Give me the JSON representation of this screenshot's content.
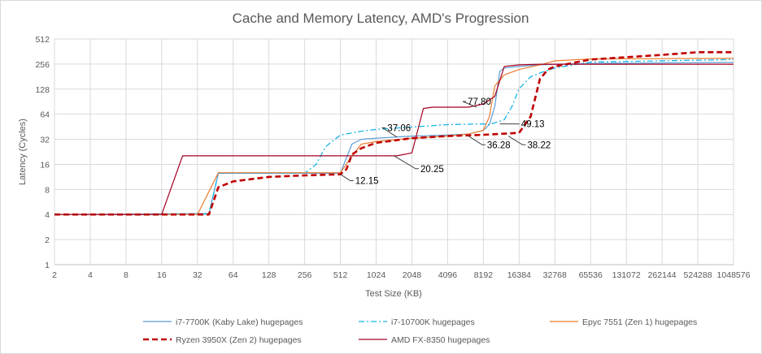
{
  "chart_data": {
    "type": "line",
    "title": "Cache and Memory Latency, AMD's Progression",
    "xlabel": "Test Size (KB)",
    "ylabel": "Latency (Cycles)",
    "x_scale": "log2",
    "y_scale": "log2",
    "x_ticks": [
      "2",
      "4",
      "8",
      "16",
      "32",
      "64",
      "128",
      "256",
      "512",
      "1024",
      "2048",
      "4096",
      "8192",
      "16384",
      "32768",
      "65536",
      "131072",
      "262144",
      "524288",
      "1048576"
    ],
    "y_ticks": [
      "1",
      "2",
      "4",
      "8",
      "16",
      "32",
      "64",
      "128",
      "256",
      "512"
    ],
    "xlim": [
      2,
      1048576
    ],
    "ylim": [
      1,
      512
    ],
    "grid": true,
    "legend_position": "bottom",
    "series": [
      {
        "name": "i7-7700K (Kaby Lake) hugepages",
        "color": "#5b9bd5",
        "dash": "solid",
        "width": 1.2,
        "points": [
          [
            2,
            4
          ],
          [
            32,
            4.1
          ],
          [
            40,
            4.1
          ],
          [
            48,
            12.5
          ],
          [
            64,
            12.5
          ],
          [
            256,
            12.5
          ],
          [
            512,
            12.5
          ],
          [
            640,
            28
          ],
          [
            768,
            32
          ],
          [
            1024,
            33
          ],
          [
            2048,
            35
          ],
          [
            4096,
            36
          ],
          [
            6144,
            37
          ],
          [
            8192,
            41
          ],
          [
            9216,
            48
          ],
          [
            10240,
            80
          ],
          [
            11264,
            210
          ],
          [
            12288,
            230
          ],
          [
            16384,
            240
          ],
          [
            24576,
            250
          ],
          [
            32768,
            255
          ],
          [
            65536,
            260
          ],
          [
            1048576,
            268
          ]
        ]
      },
      {
        "name": "i7-10700K hugepages",
        "color": "#16b4e6",
        "dash": "dashdot",
        "width": 1.3,
        "points": [
          [
            2,
            4
          ],
          [
            32,
            4
          ],
          [
            40,
            4.1
          ],
          [
            48,
            12.5
          ],
          [
            64,
            12.5
          ],
          [
            256,
            12.5
          ],
          [
            320,
            16
          ],
          [
            384,
            26
          ],
          [
            512,
            36
          ],
          [
            768,
            40
          ],
          [
            1024,
            42
          ],
          [
            2048,
            45
          ],
          [
            4096,
            48
          ],
          [
            8192,
            49
          ],
          [
            9216,
            48
          ],
          [
            12288,
            55
          ],
          [
            14336,
            80
          ],
          [
            16384,
            130
          ],
          [
            20480,
            180
          ],
          [
            24576,
            200
          ],
          [
            32768,
            230
          ],
          [
            65536,
            270
          ],
          [
            1048576,
            290
          ]
        ]
      },
      {
        "name": "Epyc 7551 (Zen 1) hugepages",
        "color": "#ed7d31",
        "dash": "solid",
        "width": 1.2,
        "points": [
          [
            2,
            4
          ],
          [
            32,
            4
          ],
          [
            48,
            12.7
          ],
          [
            512,
            12.7
          ],
          [
            640,
            20
          ],
          [
            768,
            28
          ],
          [
            1024,
            30
          ],
          [
            2048,
            33
          ],
          [
            4096,
            35
          ],
          [
            6144,
            37
          ],
          [
            8192,
            41
          ],
          [
            9216,
            60
          ],
          [
            10240,
            140
          ],
          [
            12288,
            190
          ],
          [
            16384,
            220
          ],
          [
            24576,
            250
          ],
          [
            32768,
            280
          ],
          [
            65536,
            295
          ],
          [
            1048576,
            300
          ]
        ]
      },
      {
        "name": "Ryzen 3950X (Zen 2) hugepages",
        "color": "#c00000",
        "dash": "dash",
        "width": 2.6,
        "points": [
          [
            2,
            4
          ],
          [
            32,
            4
          ],
          [
            40,
            4
          ],
          [
            48,
            8.5
          ],
          [
            64,
            10
          ],
          [
            128,
            11.3
          ],
          [
            256,
            11.8
          ],
          [
            512,
            12.15
          ],
          [
            576,
            14
          ],
          [
            640,
            21
          ],
          [
            768,
            25
          ],
          [
            1024,
            29
          ],
          [
            2048,
            33
          ],
          [
            4096,
            35
          ],
          [
            8192,
            36.28
          ],
          [
            16384,
            38.22
          ],
          [
            20480,
            60
          ],
          [
            24576,
            170
          ],
          [
            28672,
            220
          ],
          [
            32768,
            240
          ],
          [
            65536,
            290
          ],
          [
            262144,
            330
          ],
          [
            524288,
            355
          ],
          [
            1048576,
            355
          ]
        ]
      },
      {
        "name": "AMD FX-8350 hugepages",
        "color": "#a50021",
        "dash": "solid",
        "width": 1.2,
        "points": [
          [
            2,
            4
          ],
          [
            16,
            4
          ],
          [
            24,
            20.25
          ],
          [
            1536,
            20.25
          ],
          [
            2048,
            22
          ],
          [
            2560,
            75
          ],
          [
            3072,
            77.8
          ],
          [
            6144,
            77.8
          ],
          [
            8192,
            85
          ],
          [
            10240,
            105
          ],
          [
            12288,
            240
          ],
          [
            16384,
            250
          ],
          [
            24576,
            255
          ],
          [
            32768,
            255
          ],
          [
            1048576,
            255
          ]
        ]
      }
    ],
    "annotations": [
      {
        "text": "37.06",
        "x": 1536,
        "y": 34,
        "label_x": 1160,
        "label_y": 44
      },
      {
        "text": "77.80",
        "x": 7168,
        "y": 78,
        "label_x": 5500,
        "label_y": 91
      },
      {
        "text": "49.13",
        "x": 11264,
        "y": 49,
        "label_x": 15500,
        "label_y": 49
      },
      {
        "text": "12.15",
        "x": 512,
        "y": 12.15,
        "label_x": 620,
        "label_y": 10.2
      },
      {
        "text": "20.25",
        "x": 1448,
        "y": 20.25,
        "label_x": 2200,
        "label_y": 14.2
      },
      {
        "text": "36.28",
        "x": 6144,
        "y": 35,
        "label_x": 8000,
        "label_y": 27.5
      },
      {
        "text": "38.22",
        "x": 13312,
        "y": 35,
        "label_x": 17500,
        "label_y": 27.5
      }
    ]
  }
}
